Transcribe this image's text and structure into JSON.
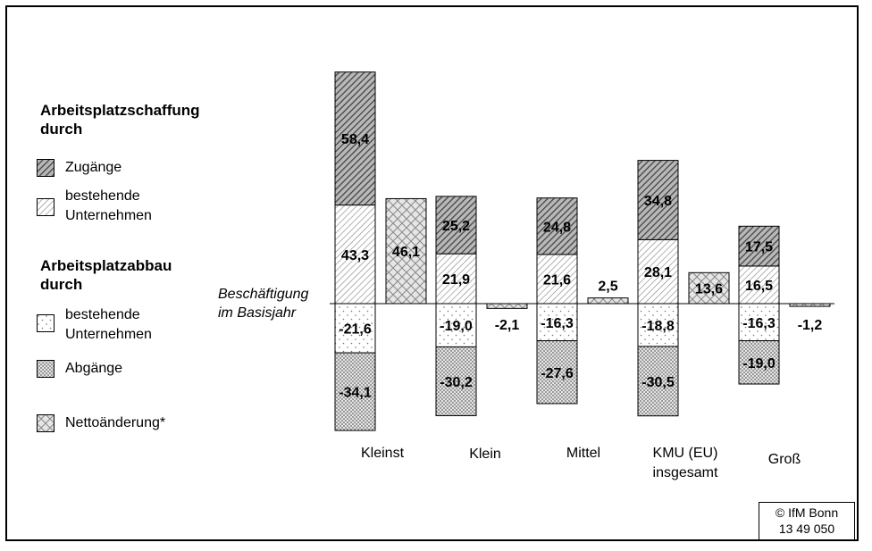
{
  "chart_data": {
    "type": "bar",
    "stacked": true,
    "categories": [
      "Kleinst",
      "Klein",
      "Mittel",
      "KMU (EU) insgesamt",
      "Groß"
    ],
    "categories_display": [
      [
        "Kleinst"
      ],
      [
        "Klein"
      ],
      [
        "Mittel"
      ],
      [
        "KMU (EU)",
        "insgesamt"
      ],
      [
        "Groß"
      ]
    ],
    "series": [
      {
        "name": "Zugänge",
        "group": "Arbeitsplatzschaffung durch",
        "values": [
          58.4,
          25.2,
          24.8,
          34.8,
          17.5
        ],
        "labels": [
          "58,4",
          "25,2",
          "24,8",
          "34,8",
          "17,5"
        ]
      },
      {
        "name": "bestehende Unternehmen",
        "group": "Arbeitsplatzschaffung durch",
        "values": [
          43.3,
          21.9,
          21.6,
          28.1,
          16.5
        ],
        "labels": [
          "43,3",
          "21,9",
          "21,6",
          "28,1",
          "16,5"
        ]
      },
      {
        "name": "bestehende Unternehmen",
        "group": "Arbeitsplatzabbau durch",
        "values": [
          -21.6,
          -19.0,
          -16.3,
          -18.8,
          -16.3
        ],
        "labels": [
          "-21,6",
          "-19,0",
          "-16,3",
          "-18,8",
          "-16,3"
        ]
      },
      {
        "name": "Abgänge",
        "group": "Arbeitsplatzabbau durch",
        "values": [
          -34.1,
          -30.2,
          -27.6,
          -30.5,
          -19.0
        ],
        "labels": [
          "-34,1",
          "-30,2",
          "-27,6",
          "-30,5",
          "-19,0"
        ]
      },
      {
        "name": "Nettoänderung*",
        "values": [
          46.1,
          -2.1,
          2.5,
          13.6,
          -1.2
        ],
        "labels": [
          "46,1",
          "-2,1",
          "2,5",
          "13,6",
          "-1,2"
        ]
      }
    ],
    "baseline_label": [
      "Beschäftigung",
      "im Basisjahr"
    ],
    "ylim": [
      -56,
      103
    ],
    "grid": false,
    "legend_position": "left"
  },
  "legend": {
    "heading_creation": [
      "Arbeitsplatzschaffung",
      "durch"
    ],
    "item_additions": [
      "Zugänge"
    ],
    "item_existing_creation": [
      "bestehende",
      "Unternehmen"
    ],
    "heading_reduction": [
      "Arbeitsplatzabbau",
      "durch"
    ],
    "item_existing_reduction": [
      "bestehende",
      "Unternehmen"
    ],
    "item_closures": [
      "Abgänge"
    ],
    "item_net": [
      "Nettoänderung*"
    ]
  },
  "credit": {
    "line1": "© IfM Bonn",
    "line2": "13  49  050"
  },
  "colors": {
    "background": "#ffffff",
    "ink": "#000000",
    "hatch_dense": "#5a5a5a",
    "hatch_light": "#8a8a8a",
    "dots": "#777777"
  }
}
